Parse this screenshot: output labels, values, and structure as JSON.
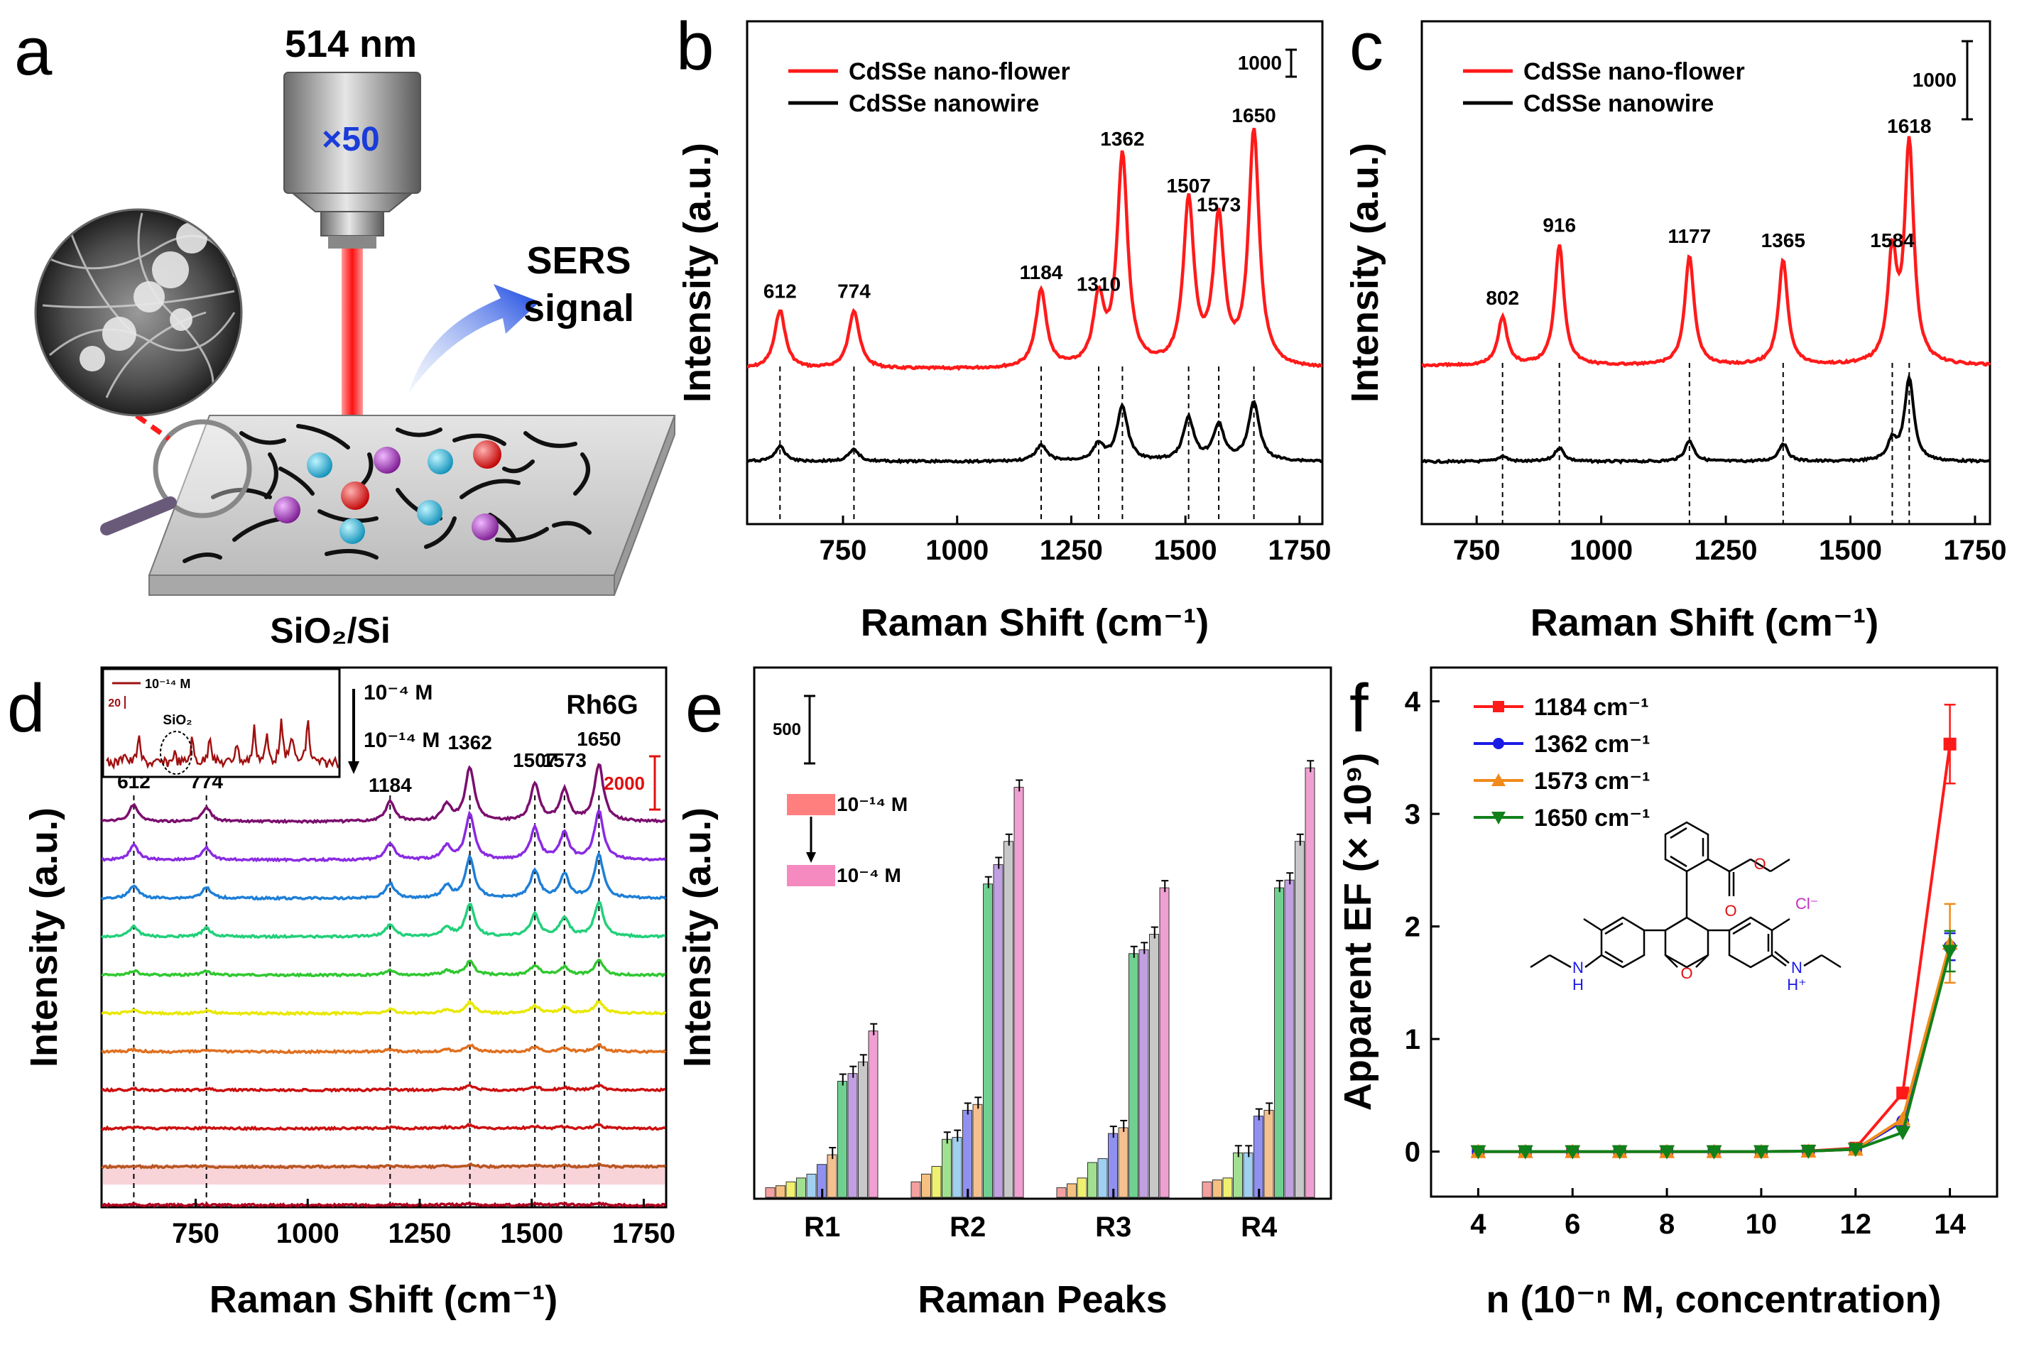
{
  "figure_labels": {
    "a": "a",
    "b": "b",
    "c": "c",
    "d": "d",
    "e": "e",
    "f": "f"
  },
  "panel_a": {
    "laser": "514 nm",
    "objective": "×50",
    "signal_line1": "SERS",
    "signal_line2": "signal",
    "substrate": "SiO₂/Si",
    "colors": {
      "laser": "#ff2020",
      "arrow": "#1040e0",
      "cyan": "#20a8c8",
      "purple": "#9a2fa8",
      "red": "#e01010"
    }
  },
  "chart_data": [
    {
      "panel": "b",
      "type": "line",
      "xlabel": "Raman Shift (cm⁻¹)",
      "ylabel": "Intensity (a.u.)",
      "xlim": [
        540,
        1800
      ],
      "xticks": [
        750,
        1000,
        1250,
        1500,
        1750
      ],
      "scale_bar": "1000",
      "series": [
        {
          "name": "CdSSe nano-flower",
          "color": "#ff1a1a",
          "peaks": [
            {
              "x": 612,
              "h": 0.25
            },
            {
              "x": 774,
              "h": 0.25
            },
            {
              "x": 1184,
              "h": 0.33
            },
            {
              "x": 1310,
              "h": 0.28
            },
            {
              "x": 1362,
              "h": 0.9
            },
            {
              "x": 1507,
              "h": 0.7
            },
            {
              "x": 1573,
              "h": 0.62
            },
            {
              "x": 1650,
              "h": 1.0
            }
          ]
        },
        {
          "name": "CdSSe nanowire",
          "color": "#000000",
          "peaks": [
            {
              "x": 612,
              "h": 0.09
            },
            {
              "x": 774,
              "h": 0.07
            },
            {
              "x": 1184,
              "h": 0.1
            },
            {
              "x": 1310,
              "h": 0.1
            },
            {
              "x": 1362,
              "h": 0.33
            },
            {
              "x": 1507,
              "h": 0.26
            },
            {
              "x": 1573,
              "h": 0.22
            },
            {
              "x": 1650,
              "h": 0.36
            }
          ]
        }
      ],
      "peak_labels": [
        "612",
        "774",
        "1184",
        "1310",
        "1362",
        "1507",
        "1573",
        "1650"
      ]
    },
    {
      "panel": "c",
      "type": "line",
      "xlabel": "Raman Shift (cm⁻¹)",
      "ylabel": "Intensity (a.u.)",
      "xlim": [
        640,
        1780
      ],
      "xticks": [
        750,
        1000,
        1250,
        1500,
        1750
      ],
      "scale_bar": "1000",
      "series": [
        {
          "name": "CdSSe nano-flower",
          "color": "#ff1a1a",
          "peaks": [
            {
              "x": 802,
              "h": 0.22
            },
            {
              "x": 916,
              "h": 0.55
            },
            {
              "x": 1177,
              "h": 0.5
            },
            {
              "x": 1365,
              "h": 0.48
            },
            {
              "x": 1584,
              "h": 0.48
            },
            {
              "x": 1618,
              "h": 1.0
            }
          ]
        },
        {
          "name": "CdSSe nanowire",
          "color": "#000000",
          "peaks": [
            {
              "x": 802,
              "h": 0.04
            },
            {
              "x": 916,
              "h": 0.1
            },
            {
              "x": 1177,
              "h": 0.15
            },
            {
              "x": 1365,
              "h": 0.13
            },
            {
              "x": 1584,
              "h": 0.14
            },
            {
              "x": 1618,
              "h": 0.6
            }
          ]
        }
      ],
      "peak_labels": [
        "802",
        "916",
        "1177",
        "1365",
        "1584",
        "1618"
      ]
    },
    {
      "panel": "d",
      "type": "line",
      "xlabel": "Raman Shift (cm⁻¹)",
      "ylabel": "Intensity (a.u.)",
      "xlim": [
        540,
        1800
      ],
      "xticks": [
        750,
        1000,
        1250,
        1500,
        1750
      ],
      "analyte": "Rh6G",
      "conc_top": "10⁻⁴ M",
      "conc_bottom": "10⁻¹⁴ M",
      "scale_bar": "2000",
      "peak_labels": [
        "612",
        "774",
        "1184",
        "1362",
        "1507",
        "1573",
        "1650"
      ],
      "concentrations": [
        4,
        5,
        6,
        7,
        8,
        9,
        10,
        11,
        12,
        13,
        14
      ],
      "colors": [
        "#7b0f6e",
        "#8a2be2",
        "#1e7fd6",
        "#22d07a",
        "#30c830",
        "#e8e800",
        "#e07020",
        "#cc1010",
        "#cc1010",
        "#b8551f",
        "#b00020"
      ],
      "scales": [
        1.0,
        0.85,
        0.75,
        0.6,
        0.25,
        0.2,
        0.12,
        0.08,
        0.06,
        0.04,
        0.03
      ],
      "inset": {
        "label": "10⁻¹⁴ M",
        "scale": "20",
        "annotation": "SiO₂"
      }
    },
    {
      "panel": "e",
      "type": "bar",
      "xlabel": "Raman Peaks",
      "ylabel": "Intensity (a.u.)",
      "categories": [
        "R1",
        "R2",
        "R3",
        "R4"
      ],
      "legend_top": "10⁻¹⁴ M",
      "legend_bottom": "10⁻⁴ M",
      "scale_bar": "500",
      "bar_colors": [
        "#f5a0a0",
        "#f5c080",
        "#f0f070",
        "#a0e090",
        "#a0d0f0",
        "#9090f0",
        "#f5c090",
        "#70d090",
        "#c0a0e0",
        "#c8c8c8",
        "#f0a0d0"
      ],
      "values": [
        [
          25,
          30,
          40,
          50,
          60,
          85,
          110,
          300,
          320,
          350,
          430
        ],
        [
          40,
          60,
          80,
          150,
          155,
          225,
          240,
          810,
          860,
          920,
          1060
        ],
        [
          25,
          35,
          50,
          90,
          100,
          165,
          180,
          630,
          640,
          680,
          800
        ],
        [
          40,
          45,
          50,
          115,
          115,
          210,
          225,
          800,
          820,
          920,
          1110
        ]
      ],
      "ylim": [
        0,
        1250
      ]
    },
    {
      "panel": "f",
      "type": "line",
      "xlabel": "n (10⁻ⁿ M, concentration)",
      "ylabel": "Apparent EF (× 10⁹)",
      "xlim": [
        3,
        15
      ],
      "ylim": [
        -0.4,
        4.3
      ],
      "xticks": [
        4,
        6,
        8,
        10,
        12,
        14
      ],
      "yticks": [
        0,
        1,
        2,
        3,
        4
      ],
      "x": [
        4,
        5,
        6,
        7,
        8,
        9,
        10,
        11,
        12,
        13,
        14
      ],
      "series": [
        {
          "name": "1184 cm⁻¹",
          "color": "#ff1a1a",
          "marker": "square",
          "values": [
            0,
            0,
            0,
            0,
            0,
            0,
            0,
            0.005,
            0.03,
            0.52,
            3.62
          ],
          "err": [
            0,
            0,
            0,
            0,
            0,
            0,
            0,
            0,
            0,
            0,
            0.35
          ]
        },
        {
          "name": "1362 cm⁻¹",
          "color": "#1a1ae6",
          "marker": "circle",
          "values": [
            0,
            0,
            0,
            0,
            0,
            0,
            0,
            0.004,
            0.02,
            0.27,
            1.82
          ],
          "err": [
            0,
            0,
            0,
            0,
            0,
            0,
            0,
            0,
            0,
            0,
            0.12
          ]
        },
        {
          "name": "1573 cm⁻¹",
          "color": "#f08a1a",
          "marker": "triangle-up",
          "values": [
            0,
            0,
            0,
            0,
            0,
            0,
            0,
            0.004,
            0.02,
            0.29,
            1.85
          ],
          "err": [
            0,
            0,
            0,
            0,
            0,
            0,
            0,
            0,
            0,
            0,
            0.35
          ]
        },
        {
          "name": "1650 cm⁻¹",
          "color": "#10801a",
          "marker": "triangle-down",
          "values": [
            0,
            0,
            0,
            0,
            0,
            0,
            0,
            0.004,
            0.02,
            0.17,
            1.78
          ],
          "err": [
            0,
            0,
            0,
            0,
            0,
            0,
            0,
            0,
            0,
            0,
            0.18
          ]
        }
      ],
      "molecule": {
        "o": "O",
        "o_ring": "O",
        "nh": "N",
        "h": "H",
        "nh_plus": "N",
        "hplus": "H⁺",
        "cl": "Cl⁻"
      }
    }
  ]
}
